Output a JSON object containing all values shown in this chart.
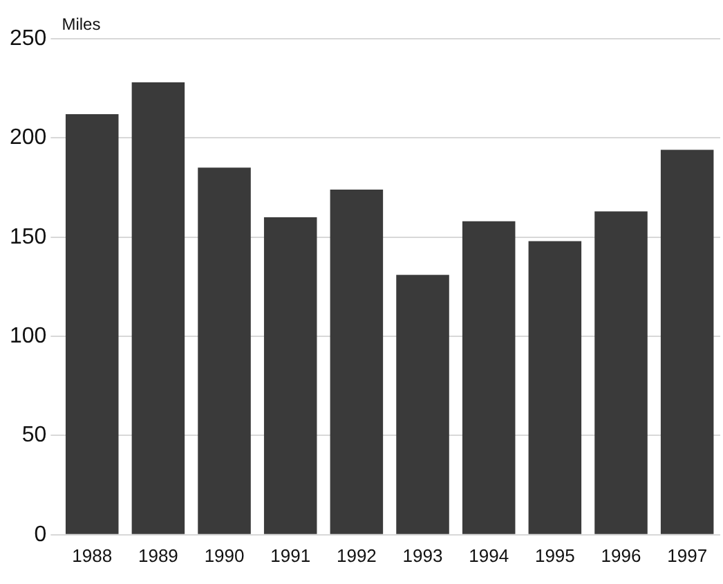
{
  "chart_data": {
    "type": "bar",
    "ylabel": "Miles",
    "categories": [
      "1988",
      "1989",
      "1990",
      "1991",
      "1992",
      "1993",
      "1994",
      "1995",
      "1996",
      "1997"
    ],
    "values": [
      212,
      228,
      185,
      160,
      174,
      131,
      158,
      148,
      163,
      194
    ],
    "color": "#3a3a3a",
    "ylim": [
      0,
      250
    ],
    "yticks": [
      0,
      50,
      100,
      150,
      200,
      250
    ],
    "grid": "y"
  }
}
